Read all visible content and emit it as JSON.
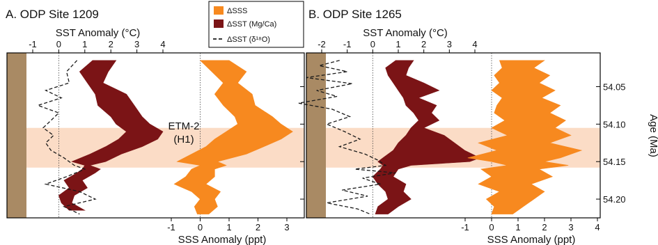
{
  "colors": {
    "sss": "#f7891f",
    "sst_mgca": "#7b1416",
    "sst_d18o": "#1a1a1a",
    "etm_band": "#fbdcc6",
    "core_strip": "#a98a64"
  },
  "legend": {
    "sss": "ΔSSS",
    "sst_mgca": "ΔSST (Mg/Ca)",
    "sst_d18o": "ΔSST (δ¹⁸O)"
  },
  "etm": {
    "label_line1": "ETM-2",
    "label_line2": "(H1)",
    "age_range": [
      54.105,
      54.158
    ]
  },
  "chart_data": [
    {
      "type": "line",
      "title": "A. ODP Site 1209",
      "ylabel": "",
      "ylim": [
        54.005,
        54.225
      ],
      "top_axis": {
        "label": "SST Anomaly (°C)",
        "ticks": [
          -1,
          0,
          1,
          2,
          3,
          4
        ],
        "tick_labels": [
          "-1",
          "0",
          "1",
          "2",
          "3",
          "4"
        ],
        "range": [
          -2.0,
          5.0
        ]
      },
      "bottom_axis": {
        "label": "SSS Anomaly (ppt)",
        "ticks": [
          -1,
          0,
          1,
          2,
          3
        ],
        "tick_labels": [
          "-1",
          "0",
          "1",
          "2",
          "3"
        ],
        "range": [
          -2.6,
          3.5
        ]
      },
      "series": [
        {
          "kind": "band",
          "axis": "top",
          "y": [
            54.015,
            54.03,
            54.045,
            54.06,
            54.075,
            54.09,
            54.1,
            54.11,
            54.12,
            54.13,
            54.14,
            54.15,
            54.155,
            54.16,
            54.165,
            54.175,
            54.185,
            54.195,
            54.205,
            54.215
          ],
          "x_low": [
            1.3,
            0.8,
            1.1,
            1.4,
            1.5,
            2.0,
            2.2,
            2.6,
            2.3,
            1.8,
            1.2,
            0.5,
            1.0,
            0.9,
            0.7,
            0.2,
            0.4,
            0.0,
            0.1,
            0.4
          ],
          "x_high": [
            2.2,
            1.9,
            1.7,
            2.6,
            2.9,
            3.2,
            3.5,
            4.0,
            3.8,
            3.2,
            2.4,
            1.8,
            1.2,
            1.6,
            1.4,
            0.9,
            1.1,
            0.6,
            0.5,
            1.0
          ]
        },
        {
          "kind": "band",
          "axis": "bottom",
          "y": [
            54.015,
            54.03,
            54.045,
            54.06,
            54.075,
            54.09,
            54.1,
            54.11,
            54.12,
            54.13,
            54.14,
            54.15,
            54.155,
            54.16,
            54.17,
            54.18,
            54.19,
            54.2,
            54.21,
            54.22
          ],
          "x_low": [
            0.0,
            0.4,
            0.8,
            0.5,
            0.8,
            1.2,
            1.3,
            0.9,
            0.5,
            0.2,
            -0.3,
            -0.8,
            0.0,
            -0.3,
            -0.5,
            -0.9,
            -0.3,
            0.0,
            -0.2,
            -0.1
          ],
          "x_high": [
            1.0,
            1.6,
            1.3,
            1.8,
            1.9,
            2.5,
            2.8,
            3.2,
            2.8,
            2.2,
            1.6,
            0.6,
            0.9,
            0.5,
            0.5,
            0.2,
            0.7,
            0.5,
            0.6,
            0.3
          ]
        },
        {
          "kind": "line",
          "axis": "top",
          "style": "dashed",
          "y": [
            54.015,
            54.03,
            54.045,
            54.055,
            54.065,
            54.075,
            54.085,
            54.095,
            54.105,
            54.115,
            54.125,
            54.135,
            54.145,
            54.155,
            54.16,
            54.17,
            54.18,
            54.19,
            54.2,
            54.21,
            54.22
          ],
          "x": [
            0.7,
            0.3,
            0.4,
            -0.5,
            0.1,
            -0.8,
            0.0,
            -0.3,
            -0.6,
            -0.2,
            -0.5,
            -0.3,
            0.2,
            0.6,
            1.0,
            0.3,
            -0.5,
            0.8,
            1.4,
            0.2,
            0.8
          ]
        }
      ]
    },
    {
      "type": "line",
      "title": "B. ODP Site 1265",
      "ylabel": "Age (Ma)",
      "ylim": [
        54.005,
        54.225
      ],
      "yticks": [
        54.05,
        54.1,
        54.15,
        54.2
      ],
      "ytick_labels": [
        "54.05",
        "54.10",
        "54.15",
        "54.20"
      ],
      "top_axis": {
        "label": "SST Anomaly (°C)",
        "ticks": [
          -2,
          -1,
          0,
          1,
          2,
          3,
          4
        ],
        "tick_labels": [
          "-2",
          "-1",
          "0",
          "1",
          "2",
          "3",
          "4"
        ],
        "range": [
          -3.2,
          4.8
        ]
      },
      "bottom_axis": {
        "label": "SSS Anomaly (ppt)",
        "ticks": [
          -1,
          0,
          1,
          2,
          3,
          4
        ],
        "tick_labels": [
          "-1",
          "0",
          "1",
          "2",
          "3",
          "4"
        ],
        "range": [
          -3.5,
          4.5
        ]
      },
      "series": [
        {
          "kind": "band",
          "axis": "top",
          "y": [
            54.015,
            54.025,
            54.035,
            54.045,
            54.055,
            54.065,
            54.075,
            54.085,
            54.095,
            54.105,
            54.115,
            54.125,
            54.135,
            54.145,
            54.15,
            54.155,
            54.16,
            54.17,
            54.18,
            54.19,
            54.2,
            54.21,
            54.22
          ],
          "x_low": [
            0.9,
            0.5,
            0.6,
            0.8,
            1.0,
            1.2,
            1.3,
            1.6,
            1.8,
            1.5,
            1.3,
            1.0,
            0.8,
            0.4,
            0.2,
            0.4,
            0.3,
            0.0,
            0.2,
            0.5,
            0.6,
            0.2,
            0.1
          ],
          "x_high": [
            1.6,
            1.4,
            1.3,
            2.0,
            2.6,
            1.8,
            2.5,
            2.3,
            2.6,
            2.0,
            2.8,
            3.2,
            3.6,
            4.2,
            3.8,
            1.5,
            1.0,
            0.8,
            1.3,
            1.2,
            1.5,
            1.0,
            0.6
          ]
        },
        {
          "kind": "band",
          "axis": "bottom",
          "y": [
            54.015,
            54.025,
            54.035,
            54.045,
            54.055,
            54.065,
            54.075,
            54.085,
            54.095,
            54.105,
            54.115,
            54.125,
            54.135,
            54.145,
            54.15,
            54.155,
            54.16,
            54.17,
            54.18,
            54.19,
            54.2,
            54.21,
            54.22
          ],
          "x_low": [
            0.3,
            0.4,
            0.1,
            0.3,
            0.0,
            0.4,
            0.2,
            0.1,
            0.5,
            0.0,
            0.6,
            -0.5,
            0.2,
            -0.9,
            0.0,
            0.6,
            -0.4,
            0.0,
            -0.5,
            0.3,
            -0.2,
            0.1,
            0.0
          ],
          "x_high": [
            2.0,
            1.6,
            2.2,
            1.8,
            2.4,
            1.9,
            2.6,
            2.2,
            2.8,
            2.4,
            3.0,
            2.2,
            3.4,
            2.6,
            2.0,
            2.9,
            1.8,
            2.3,
            1.5,
            2.0,
            1.6,
            1.2,
            0.8
          ]
        },
        {
          "kind": "line",
          "axis": "top",
          "style": "dashed",
          "y": [
            54.015,
            54.022,
            54.03,
            54.038,
            54.046,
            54.055,
            54.063,
            54.072,
            54.08,
            54.09,
            54.1,
            54.11,
            54.12,
            54.13,
            54.14,
            54.148,
            54.155,
            54.16,
            54.165,
            54.172,
            54.18,
            54.188,
            54.196,
            54.205,
            54.213,
            54.22
          ],
          "x": [
            -1.3,
            -2.1,
            -1.0,
            -2.6,
            -0.8,
            -2.2,
            -1.4,
            -2.9,
            -1.6,
            -0.9,
            -1.8,
            -1.1,
            -0.5,
            -1.3,
            -0.3,
            0.2,
            0.5,
            -0.7,
            0.9,
            -0.4,
            0.3,
            -1.2,
            -0.2,
            -1.8,
            -0.6,
            -0.1
          ]
        }
      ]
    }
  ]
}
